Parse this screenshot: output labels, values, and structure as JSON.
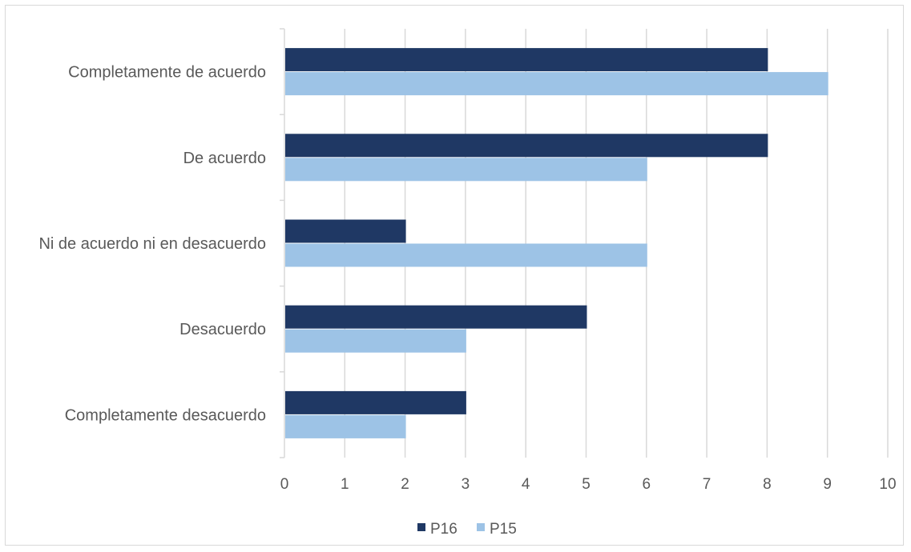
{
  "chart_data": {
    "type": "bar",
    "orientation": "horizontal",
    "title": "",
    "xlabel": "",
    "ylabel": "",
    "categories": [
      "Completamente de  acuerdo",
      "De acuerdo",
      "Ni de acuerdo ni en desacuerdo",
      "Desacuerdo",
      "Completamente desacuerdo"
    ],
    "series": [
      {
        "name": "P16",
        "color": "#1f3864",
        "values": [
          8,
          8,
          2,
          5,
          3
        ]
      },
      {
        "name": "P15",
        "color": "#9dc3e6",
        "values": [
          9,
          6,
          6,
          3,
          2
        ]
      }
    ],
    "xlim": [
      0,
      10
    ],
    "xticks": [
      "0",
      "1",
      "2",
      "3",
      "4",
      "5",
      "6",
      "7",
      "8",
      "9",
      "10"
    ],
    "grid": "vertical",
    "legend_position": "bottom"
  }
}
